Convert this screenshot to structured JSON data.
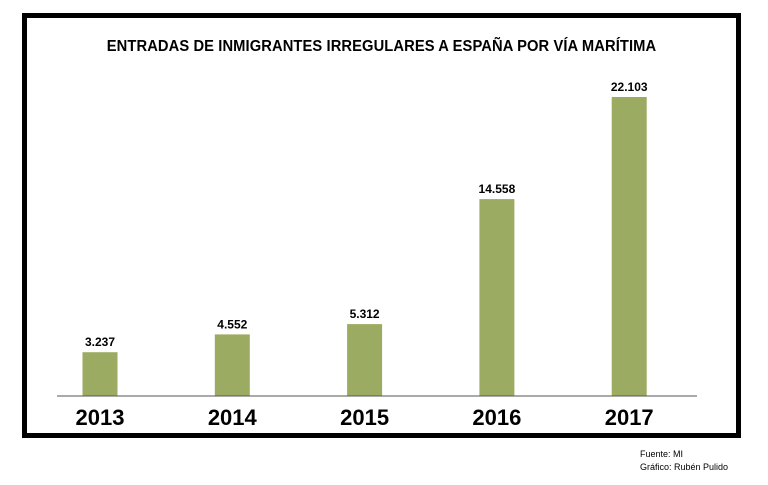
{
  "chart_data": {
    "type": "bar",
    "title": "ENTRADAS DE INMIGRANTES IRREGULARES A ESPAÑA POR VÍA MARÍTIMA",
    "categories": [
      "2013",
      "2014",
      "2015",
      "2016",
      "2017"
    ],
    "values": [
      3237,
      4552,
      5312,
      14558,
      22103
    ],
    "value_labels": [
      "3.237",
      "4.552",
      "5.312",
      "14.558",
      "22.103"
    ],
    "xlabel": "",
    "ylabel": "",
    "ylim": [
      0,
      22103
    ],
    "grid": false,
    "bar_color": "#9cab62"
  },
  "credits": {
    "source": "Fuente: MI",
    "author": "Gráfico: Rubén Pulido"
  }
}
